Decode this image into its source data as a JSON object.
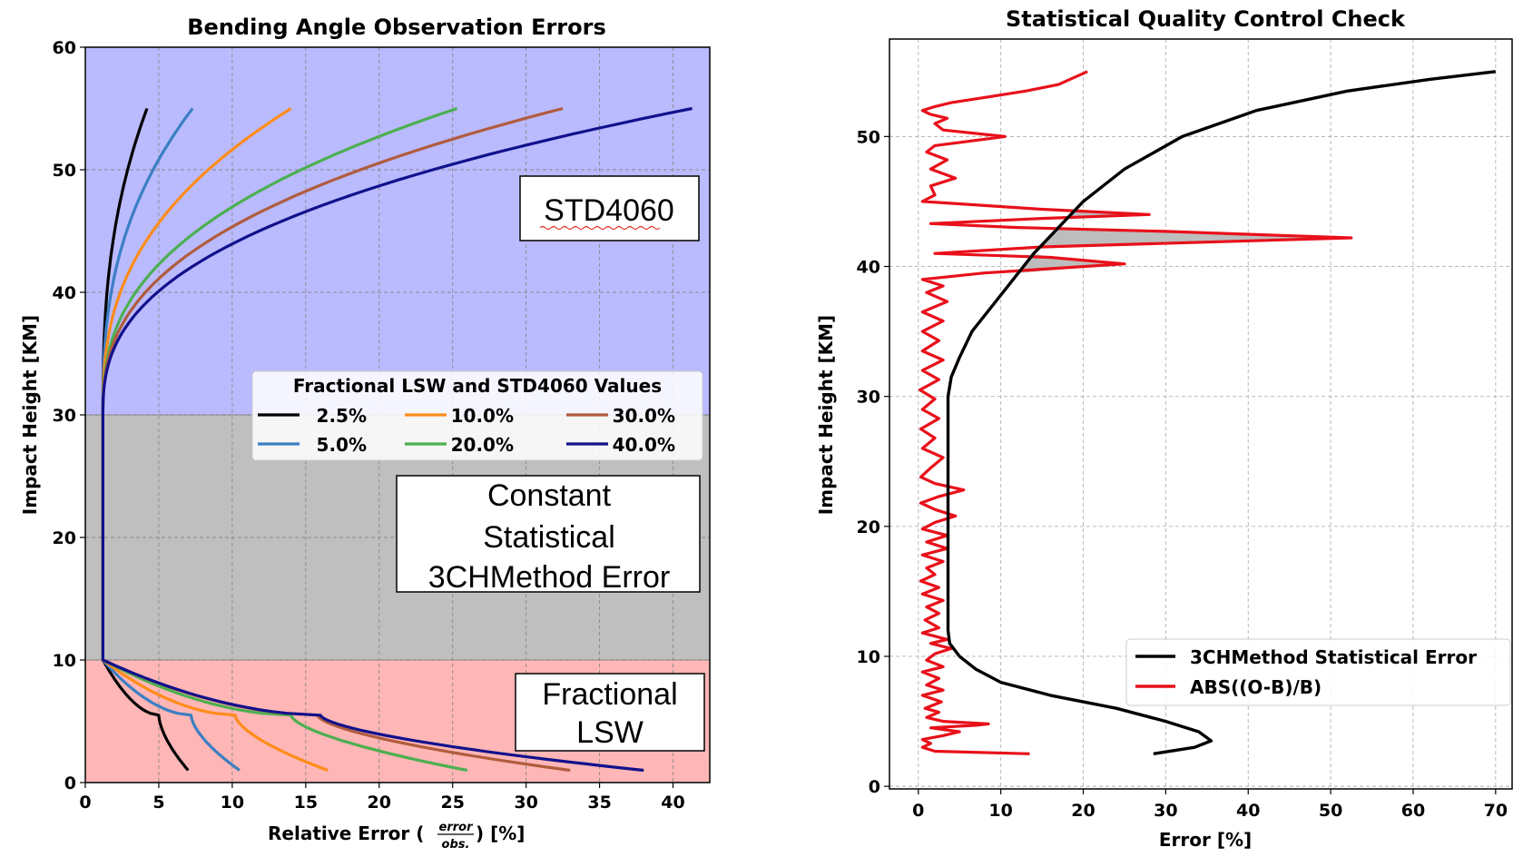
{
  "left": {
    "chart_data": {
      "type": "line",
      "title": "Bending Angle Observation Errors",
      "xlabel_prefix": "Relative Error (",
      "xlabel_frac_num": "error",
      "xlabel_frac_den": "obs.",
      "xlabel_suffix": ") [%]",
      "ylabel": "Impact Height [KM]",
      "xlim": [
        0,
        42.5
      ],
      "ylim": [
        0,
        60
      ],
      "xticks": [
        0,
        5,
        10,
        15,
        20,
        25,
        30,
        35,
        40
      ],
      "yticks": [
        0,
        10,
        20,
        30,
        40,
        50,
        60
      ],
      "grid": true,
      "regions": [
        {
          "y0": 30,
          "y1": 60,
          "color": "#babaff"
        },
        {
          "y0": 10,
          "y1": 30,
          "color": "#bfbfbf"
        },
        {
          "y0": 0,
          "y1": 10,
          "color": "#ffb6b6"
        }
      ],
      "region_boxes": [
        {
          "name": "std4060-box",
          "lines": [
            "STD4060"
          ]
        },
        {
          "name": "constant-box",
          "lines": [
            "Constant",
            "Statistical",
            "3CHMethod Error"
          ]
        },
        {
          "name": "fractional-box",
          "lines": [
            "Fractional",
            "LSW"
          ]
        }
      ],
      "legend": {
        "title": "Fractional LSW and STD4060 Values",
        "placement": "center-right",
        "ncol": 3
      },
      "constant_x": 1.2,
      "series": [
        {
          "name": "2.5%",
          "color": "#000000",
          "upper_x": 4.2,
          "lower_knee": 5.0,
          "lower_end_x": 7.0
        },
        {
          "name": "5.0%",
          "color": "#3b7fc4",
          "upper_x": 7.3,
          "lower_knee": 7.2,
          "lower_end_x": 10.5
        },
        {
          "name": "10.0%",
          "color": "#ff8c1a",
          "upper_x": 14.0,
          "lower_knee": 10.2,
          "lower_end_x": 16.5
        },
        {
          "name": "20.0%",
          "color": "#4caf50",
          "upper_x": 25.3,
          "lower_knee": 14.0,
          "lower_end_x": 26.0
        },
        {
          "name": "30.0%",
          "color": "#b05c3c",
          "upper_x": 32.5,
          "lower_knee": 15.8,
          "lower_end_x": 33.0
        },
        {
          "name": "40.0%",
          "color": "#11118c",
          "upper_x": 41.3,
          "lower_knee": 16.0,
          "lower_end_x": 38.0
        }
      ]
    }
  },
  "right": {
    "chart_data": {
      "type": "line",
      "title": "Statistical Quality Control Check",
      "xlabel": "Error [%]",
      "ylabel": "Impact Height [KM]",
      "xlim": [
        -3.5,
        72
      ],
      "ylim": [
        -0.2,
        57.5
      ],
      "xticks": [
        0,
        10,
        20,
        30,
        40,
        50,
        60,
        70
      ],
      "yticks": [
        0,
        10,
        20,
        30,
        40,
        50
      ],
      "grid": true,
      "legend_placement": "lower-right",
      "series": [
        {
          "name": "3CHMethod Statistical Error",
          "color": "#000000",
          "points": [
            [
              28.5,
              2.5
            ],
            [
              33.5,
              3.0
            ],
            [
              35.5,
              3.5
            ],
            [
              34.0,
              4.2
            ],
            [
              30.0,
              5.0
            ],
            [
              24.0,
              6.0
            ],
            [
              16.0,
              7.0
            ],
            [
              10.0,
              8.0
            ],
            [
              7.0,
              9.0
            ],
            [
              5.0,
              10.0
            ],
            [
              3.8,
              11.0
            ],
            [
              3.6,
              12.0
            ],
            [
              3.6,
              20.0
            ],
            [
              3.6,
              30.0
            ],
            [
              4.0,
              31.5
            ],
            [
              5.0,
              33.0
            ],
            [
              6.5,
              35.0
            ],
            [
              9.0,
              37.0
            ],
            [
              11.5,
              39.0
            ],
            [
              14.0,
              41.0
            ],
            [
              17.0,
              43.0
            ],
            [
              20.0,
              45.0
            ],
            [
              25.0,
              47.5
            ],
            [
              32.0,
              50.0
            ],
            [
              41.0,
              52.0
            ],
            [
              52.0,
              53.5
            ],
            [
              62.0,
              54.4
            ],
            [
              70.0,
              55.0
            ]
          ]
        },
        {
          "name": "ABS((O-B)/B)",
          "color": "#e8101a",
          "points": [
            [
              13.5,
              2.5
            ],
            [
              2.0,
              2.7
            ],
            [
              0.5,
              3.0
            ],
            [
              1.5,
              3.3
            ],
            [
              0.5,
              3.6
            ],
            [
              3.0,
              3.9
            ],
            [
              5.0,
              4.2
            ],
            [
              1.5,
              4.5
            ],
            [
              7.0,
              4.7
            ],
            [
              8.5,
              4.8
            ],
            [
              3.0,
              5.0
            ],
            [
              1.0,
              5.3
            ],
            [
              2.5,
              5.7
            ],
            [
              0.8,
              6.0
            ],
            [
              2.8,
              6.5
            ],
            [
              0.5,
              7.0
            ],
            [
              3.0,
              7.4
            ],
            [
              1.0,
              7.8
            ],
            [
              2.5,
              8.3
            ],
            [
              0.5,
              8.8
            ],
            [
              3.0,
              9.2
            ],
            [
              1.0,
              9.7
            ],
            [
              2.0,
              10.2
            ],
            [
              4.0,
              10.6
            ],
            [
              1.5,
              11.0
            ],
            [
              3.5,
              11.3
            ],
            [
              0.5,
              11.8
            ],
            [
              2.5,
              12.2
            ],
            [
              0.8,
              12.8
            ],
            [
              2.5,
              13.3
            ],
            [
              1.0,
              13.8
            ],
            [
              3.0,
              14.3
            ],
            [
              0.5,
              14.8
            ],
            [
              2.5,
              15.3
            ],
            [
              0.3,
              15.8
            ],
            [
              2.0,
              16.3
            ],
            [
              1.0,
              16.8
            ],
            [
              3.0,
              17.3
            ],
            [
              0.5,
              17.8
            ],
            [
              3.5,
              18.3
            ],
            [
              1.0,
              18.8
            ],
            [
              3.5,
              19.3
            ],
            [
              0.5,
              19.8
            ],
            [
              2.0,
              20.3
            ],
            [
              4.5,
              20.8
            ],
            [
              2.0,
              21.3
            ],
            [
              0.3,
              21.8
            ],
            [
              2.5,
              22.3
            ],
            [
              5.5,
              22.8
            ],
            [
              2.0,
              23.3
            ],
            [
              0.3,
              23.8
            ],
            [
              1.5,
              24.5
            ],
            [
              3.0,
              25.3
            ],
            [
              0.5,
              26.0
            ],
            [
              2.0,
              26.8
            ],
            [
              0.3,
              27.5
            ],
            [
              2.5,
              28.3
            ],
            [
              0.5,
              29.0
            ],
            [
              2.0,
              29.8
            ],
            [
              0.2,
              30.5
            ],
            [
              2.5,
              31.3
            ],
            [
              0.5,
              32.0
            ],
            [
              3.0,
              32.8
            ],
            [
              0.5,
              33.5
            ],
            [
              2.5,
              34.3
            ],
            [
              0.5,
              35.0
            ],
            [
              3.0,
              35.8
            ],
            [
              0.5,
              36.5
            ],
            [
              3.5,
              37.3
            ],
            [
              1.0,
              38.0
            ],
            [
              3.0,
              38.5
            ],
            [
              0.5,
              39.0
            ],
            [
              8.0,
              39.5
            ],
            [
              25.0,
              40.2
            ],
            [
              16.0,
              40.7
            ],
            [
              2.0,
              41.0
            ],
            [
              15.0,
              41.5
            ],
            [
              52.5,
              42.2
            ],
            [
              30.0,
              42.7
            ],
            [
              12.0,
              43.0
            ],
            [
              1.5,
              43.3
            ],
            [
              15.0,
              43.7
            ],
            [
              28.0,
              44.0
            ],
            [
              15.0,
              44.4
            ],
            [
              0.5,
              45.0
            ],
            [
              2.0,
              45.5
            ],
            [
              1.5,
              46.2
            ],
            [
              4.5,
              46.8
            ],
            [
              1.5,
              47.5
            ],
            [
              3.5,
              48.2
            ],
            [
              1.0,
              48.8
            ],
            [
              2.0,
              49.3
            ],
            [
              10.5,
              50.0
            ],
            [
              3.0,
              50.5
            ],
            [
              2.0,
              51.0
            ],
            [
              3.5,
              51.4
            ],
            [
              1.5,
              51.7
            ],
            [
              0.5,
              52.0
            ],
            [
              2.0,
              52.3
            ],
            [
              4.0,
              52.6
            ],
            [
              8.0,
              53.0
            ],
            [
              13.0,
              53.5
            ],
            [
              17.0,
              54.0
            ],
            [
              20.5,
              55.0
            ]
          ]
        }
      ]
    }
  }
}
